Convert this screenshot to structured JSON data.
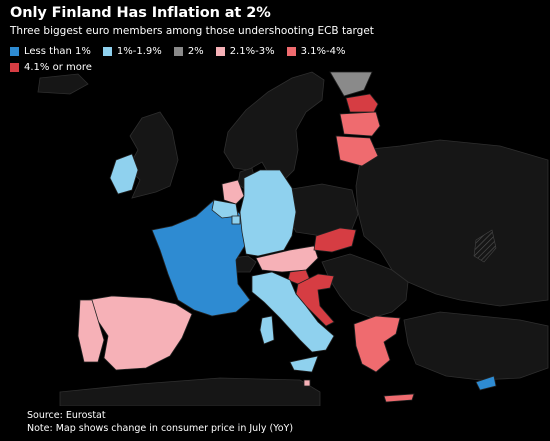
{
  "title": "Only Finland Has Inflation at 2%",
  "subtitle": "Three biggest euro members among those undershooting ECB target",
  "legend": [
    {
      "label": "Less than 1%",
      "color": "#2e8bd2"
    },
    {
      "label": "1%-1.9%",
      "color": "#8fd1ee"
    },
    {
      "label": "2%",
      "color": "#8a8a8a"
    },
    {
      "label": "2.1%-3%",
      "color": "#f6b1b7"
    },
    {
      "label": "3.1%-4%",
      "color": "#ef6b6f"
    },
    {
      "label": "4.1% or more",
      "color": "#d63d43"
    }
  ],
  "footer": {
    "source": "Source: Eurostat",
    "note": "Note: Map shows change in consumer price in July (YoY)"
  },
  "colors": {
    "background": "#000000",
    "non_member": "#161616",
    "border": "#2e2e2e"
  },
  "countries": {
    "France": "Less than 1%",
    "Spain": "2.1%-3%",
    "Portugal": "2.1%-3%",
    "Germany": "1%-1.9%",
    "Italy": "1%-1.9%",
    "Ireland": "1%-1.9%",
    "Netherlands": "2.1%-3%",
    "Belgium": "1%-1.9%",
    "Luxembourg": "1%-1.9%",
    "Austria": "2.1%-3%",
    "Slovenia": "4.1% or more",
    "Croatia": "4.1% or more",
    "Slovakia": "4.1% or more",
    "Greece": "3.1%-4%",
    "Cyprus": "Less than 1%",
    "Malta": "2.1%-3%",
    "Finland": "2%",
    "Estonia": "4.1% or more",
    "Latvia": "3.1%-4%",
    "Lithuania": "3.1%-4%"
  }
}
